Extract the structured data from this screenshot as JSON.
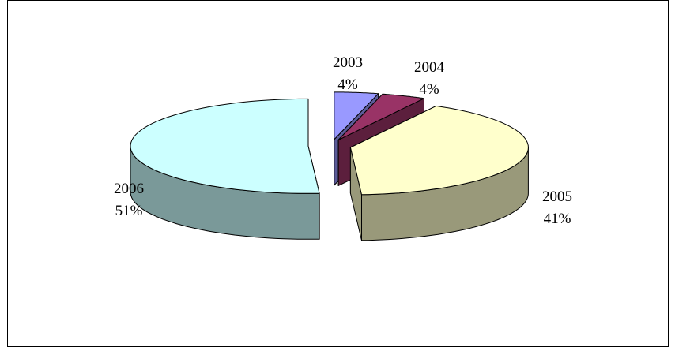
{
  "chart_data": {
    "type": "pie",
    "title": "",
    "labels": [
      "2003",
      "2004",
      "2005",
      "2006"
    ],
    "values": [
      4,
      4,
      41,
      51
    ],
    "value_labels": [
      "4%",
      "4%",
      "41%",
      "51%"
    ],
    "colors": {
      "2003": {
        "top": "#9999FF",
        "side": "#5C5C99"
      },
      "2004": {
        "top": "#993366",
        "side": "#5C1F3D"
      },
      "2005": {
        "top": "#FFFFCC",
        "side": "#99997A"
      },
      "2006": {
        "top": "#CCFFFF",
        "side": "#7A9999"
      }
    },
    "style": "3d-exploded",
    "legend": "none"
  }
}
